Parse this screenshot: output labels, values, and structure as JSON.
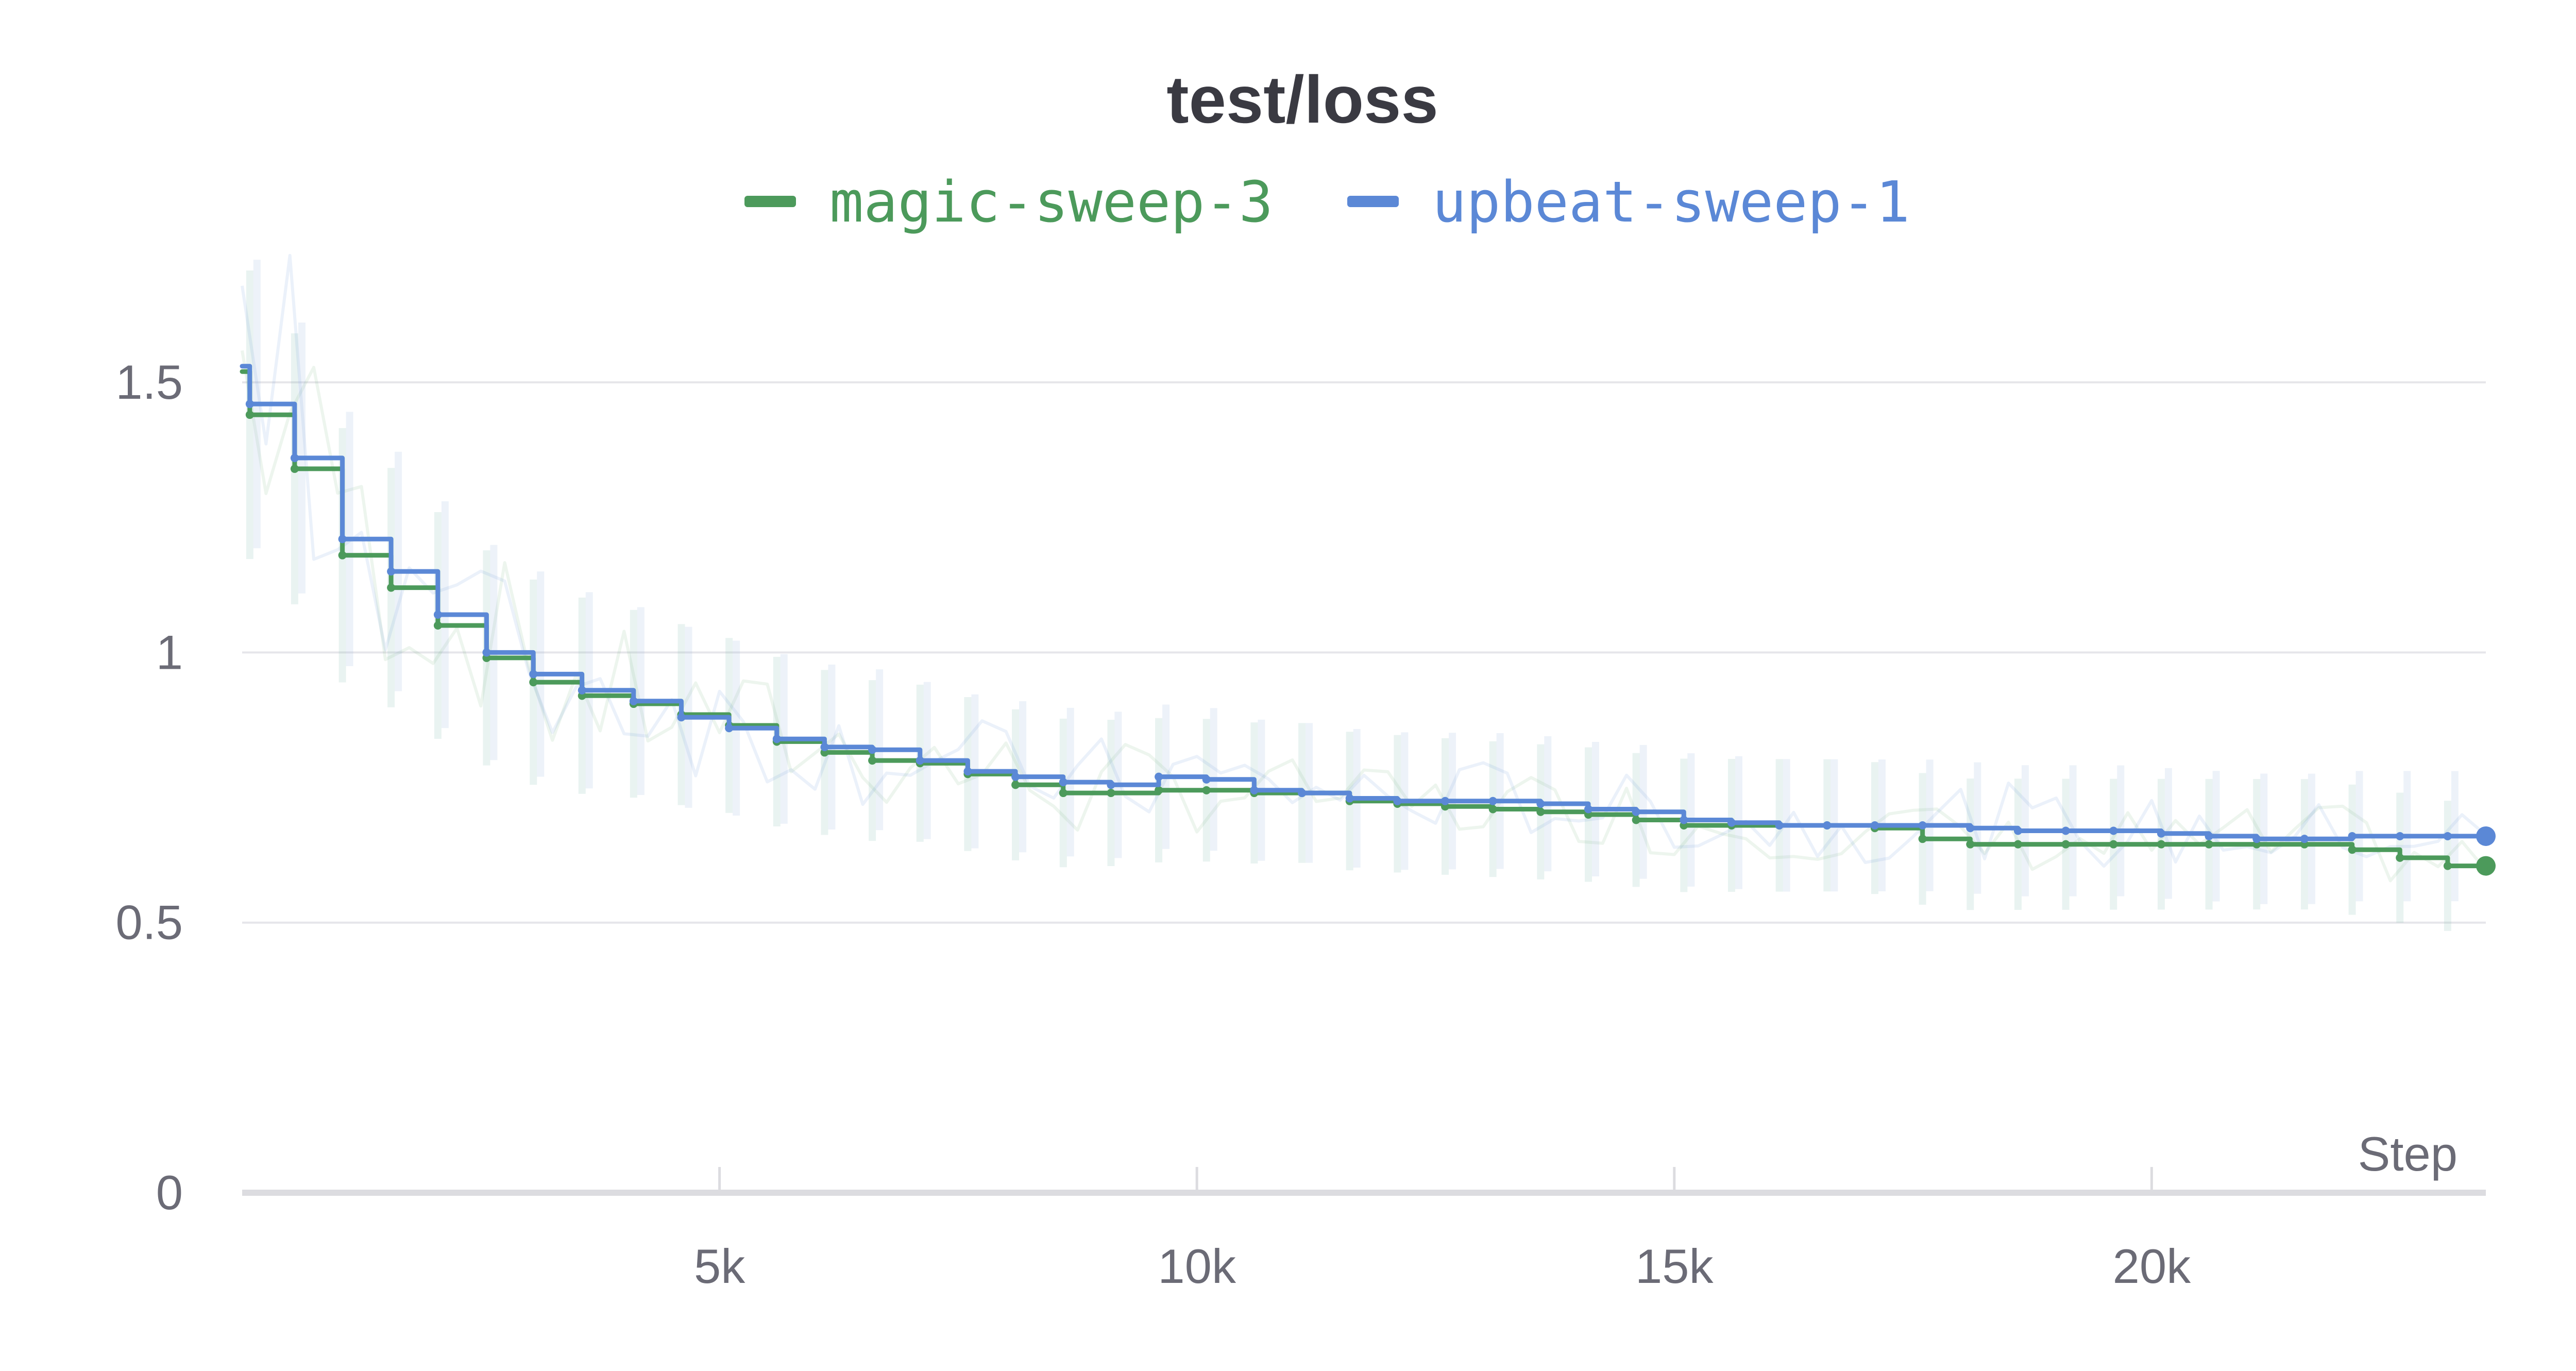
{
  "chart_data": {
    "type": "line",
    "title": "test/loss",
    "xlabel": "Step",
    "ylabel": "",
    "xlim": [
      0,
      23500
    ],
    "ylim": [
      0,
      1.75
    ],
    "x_ticks": [
      {
        "value": 5000,
        "label": "5k"
      },
      {
        "value": 10000,
        "label": "10k"
      },
      {
        "value": 15000,
        "label": "15k"
      },
      {
        "value": 20000,
        "label": "20k"
      }
    ],
    "y_ticks": [
      {
        "value": 0,
        "label": "0"
      },
      {
        "value": 0.5,
        "label": "0.5"
      },
      {
        "value": 1,
        "label": "1"
      },
      {
        "value": 1.5,
        "label": "1.5"
      }
    ],
    "grid": true,
    "legend_position": "top-center",
    "series": [
      {
        "name": "magic-sweep-3",
        "color": "#4c9a5b",
        "x": [
          0,
          80,
          550,
          1050,
          1560,
          2050,
          2560,
          3050,
          3560,
          4100,
          4600,
          5100,
          5600,
          6100,
          6600,
          7100,
          7600,
          8100,
          8600,
          9100,
          9600,
          10100,
          10600,
          11100,
          11600,
          12100,
          12600,
          13100,
          13600,
          14100,
          14600,
          15100,
          15600,
          16100,
          16600,
          17100,
          17600,
          18100,
          18600,
          19100,
          19600,
          20100,
          20600,
          21100,
          21600,
          22100,
          22600,
          23100
        ],
        "y": [
          1.52,
          1.44,
          1.34,
          1.18,
          1.12,
          1.05,
          0.99,
          0.945,
          0.92,
          0.905,
          0.885,
          0.865,
          0.835,
          0.815,
          0.8,
          0.795,
          0.775,
          0.755,
          0.74,
          0.74,
          0.745,
          0.745,
          0.74,
          0.74,
          0.725,
          0.72,
          0.715,
          0.71,
          0.705,
          0.7,
          0.69,
          0.68,
          0.68,
          0.68,
          0.68,
          0.675,
          0.655,
          0.645,
          0.645,
          0.645,
          0.645,
          0.645,
          0.645,
          0.645,
          0.645,
          0.635,
          0.62,
          0.605
        ]
      },
      {
        "name": "upbeat-sweep-1",
        "color": "#5b88d6",
        "x": [
          0,
          80,
          550,
          1050,
          1560,
          2050,
          2560,
          3050,
          3560,
          4100,
          4600,
          5100,
          5600,
          6100,
          6600,
          7100,
          7600,
          8100,
          8600,
          9100,
          9600,
          10100,
          10600,
          11100,
          11600,
          12100,
          12600,
          13100,
          13600,
          14100,
          14600,
          15100,
          15600,
          16100,
          16600,
          17100,
          17600,
          18100,
          18600,
          19100,
          19600,
          20100,
          20600,
          21100,
          21600,
          22100,
          22600,
          23100
        ],
        "y": [
          1.53,
          1.46,
          1.36,
          1.21,
          1.15,
          1.07,
          1.0,
          0.96,
          0.93,
          0.91,
          0.88,
          0.86,
          0.84,
          0.825,
          0.82,
          0.8,
          0.78,
          0.77,
          0.76,
          0.755,
          0.77,
          0.765,
          0.745,
          0.74,
          0.73,
          0.725,
          0.725,
          0.725,
          0.72,
          0.71,
          0.705,
          0.69,
          0.685,
          0.68,
          0.68,
          0.68,
          0.68,
          0.675,
          0.67,
          0.67,
          0.67,
          0.665,
          0.66,
          0.655,
          0.655,
          0.66,
          0.66,
          0.66
        ]
      }
    ]
  }
}
